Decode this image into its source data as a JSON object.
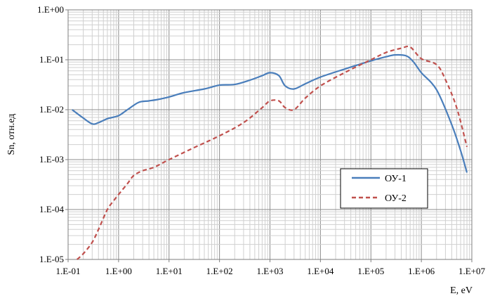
{
  "chart_data": {
    "type": "line",
    "title": "",
    "xlabel": "E, eV",
    "ylabel": "Sn, отн.ед",
    "x_scale": "log",
    "y_scale": "log",
    "xlim": [
      0.1,
      10000000
    ],
    "ylim": [
      1e-05,
      1
    ],
    "grid": true,
    "legend_position": "middle-right",
    "x_tick_labels": [
      "1.E-01",
      "1.E+00",
      "1.E+01",
      "1.E+02",
      "1.E+03",
      "1.E+04",
      "1.E+05",
      "1.E+06",
      "1.E+07"
    ],
    "y_tick_labels": [
      "1.E-05",
      "1.E-04",
      "1.E-03",
      "1.E-02",
      "1.E-01",
      "1.E+00"
    ],
    "series": [
      {
        "name": "ОУ-1",
        "color": "#4a7ebb",
        "style": "solid",
        "x": [
          0.12,
          0.2,
          0.3,
          0.4,
          0.6,
          1,
          1.5,
          2.5,
          4,
          6,
          10,
          20,
          50,
          100,
          200,
          400,
          700,
          1000,
          1500,
          2000,
          3000,
          5000,
          10000,
          30000,
          100000,
          200000,
          300000,
          500000,
          700000,
          1000000,
          2000000,
          4000000,
          6000000,
          8000000
        ],
        "y": [
          0.01,
          0.0068,
          0.0052,
          0.0055,
          0.0066,
          0.0076,
          0.01,
          0.014,
          0.015,
          0.016,
          0.018,
          0.022,
          0.026,
          0.031,
          0.032,
          0.039,
          0.048,
          0.055,
          0.048,
          0.03,
          0.026,
          0.033,
          0.045,
          0.065,
          0.095,
          0.115,
          0.125,
          0.12,
          0.09,
          0.055,
          0.025,
          0.005,
          0.0015,
          0.00055
        ]
      },
      {
        "name": "ОУ-2",
        "color": "#c0504d",
        "style": "dashed",
        "x": [
          0.15,
          0.2,
          0.3,
          0.4,
          0.6,
          0.8,
          1,
          1.5,
          2,
          3,
          5,
          10,
          30,
          100,
          300,
          700,
          1000,
          1500,
          2000,
          3000,
          5000,
          10000,
          30000,
          100000,
          200000,
          400000,
          600000,
          1000000,
          2000000,
          3000000,
          5000000,
          8000000
        ],
        "y": [
          1e-05,
          1.3e-05,
          2.2e-05,
          4e-05,
          0.0001,
          0.00015,
          0.0002,
          0.00033,
          0.00048,
          0.0006,
          0.0007,
          0.001,
          0.0017,
          0.003,
          0.0055,
          0.011,
          0.015,
          0.015,
          0.011,
          0.01,
          0.017,
          0.03,
          0.055,
          0.1,
          0.14,
          0.17,
          0.18,
          0.105,
          0.08,
          0.04,
          0.011,
          0.0018
        ]
      }
    ]
  }
}
